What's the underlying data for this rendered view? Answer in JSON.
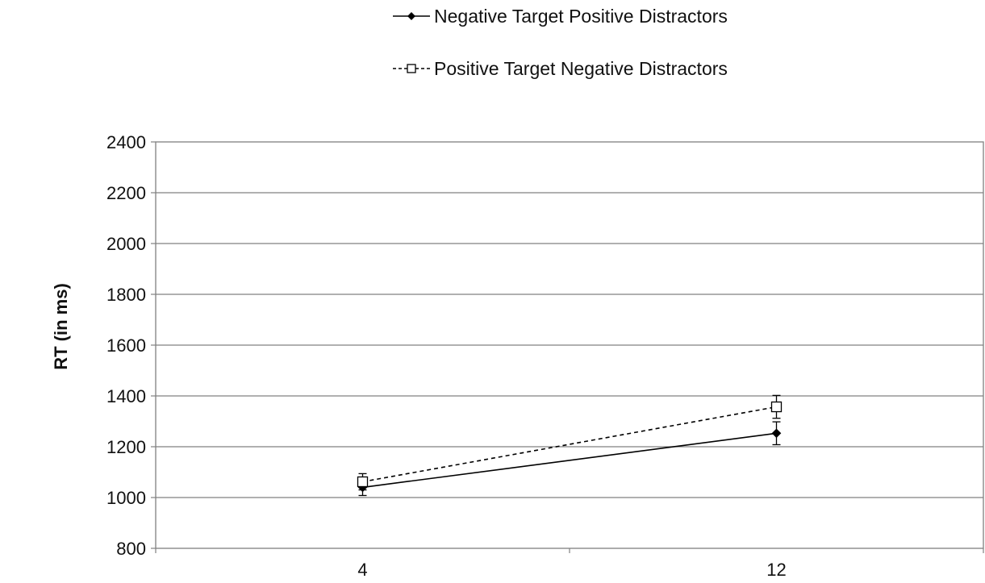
{
  "chart_data": {
    "type": "line",
    "title": "",
    "xlabel": "",
    "ylabel": "RT (in ms)",
    "categories": [
      "4",
      "12"
    ],
    "ylim": [
      800,
      2400
    ],
    "yticks": [
      800,
      1000,
      1200,
      1400,
      1600,
      1800,
      2000,
      2200,
      2400
    ],
    "grid": "horizontal",
    "legend_position": "top",
    "series": [
      {
        "name": "Negative Target Positive Distractors",
        "values": [
          1040,
          1253
        ],
        "error": [
          32,
          45
        ],
        "marker": "filled-diamond",
        "line_style": "solid",
        "color": "#000000"
      },
      {
        "name": "Positive Target Negative Distractors",
        "values": [
          1062,
          1357
        ],
        "error": [
          32,
          45
        ],
        "marker": "open-square",
        "line_style": "dashed",
        "color": "#000000"
      }
    ]
  }
}
